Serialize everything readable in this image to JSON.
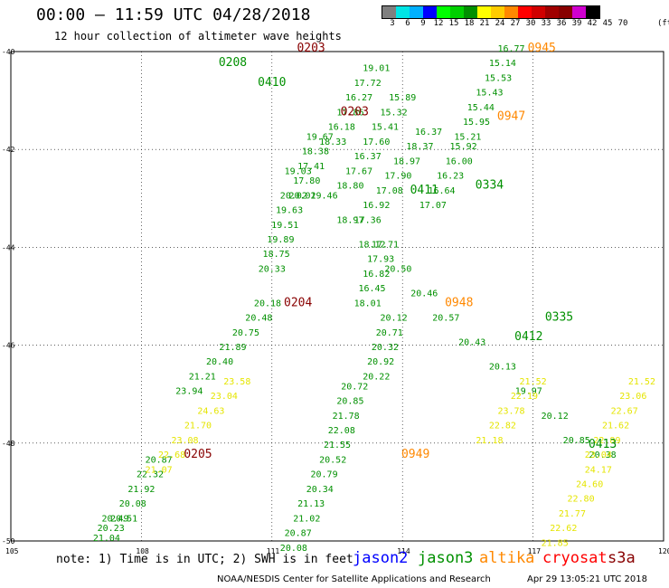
{
  "header": {
    "title": "00:00 – 11:59 UTC 04/28/2018",
    "subtitle": "12 hour collection of altimeter wave heights"
  },
  "colorscale": {
    "unit": "(ft)",
    "colors": [
      "#7f7f7f",
      "#00e5e5",
      "#00b0ff",
      "#0000ff",
      "#00ff00",
      "#00d000",
      "#009000",
      "#ffff00",
      "#ffcc00",
      "#ff8800",
      "#ff0000",
      "#d00000",
      "#a00000",
      "#880000",
      "#d000d0",
      "#000000"
    ],
    "ticks": [
      "3",
      "6",
      "9",
      "12",
      "15",
      "18",
      "21",
      "24",
      "27",
      "30",
      "33",
      "36",
      "39",
      "42",
      "45",
      "70"
    ]
  },
  "chart_data": {
    "type": "scatter",
    "xlim": [
      105,
      120
    ],
    "ylim": [
      -50,
      -40
    ],
    "x_ticks": [
      "105",
      "108",
      "111",
      "114",
      "117",
      "120"
    ],
    "y_ticks": [
      "-40",
      "-42",
      "-44",
      "-46",
      "-48",
      "-50"
    ],
    "tracks": [
      {
        "series": "jason3",
        "color": "#009000",
        "x": [
          118.6,
          118.0,
          117.5,
          116.9,
          116.3,
          115.6,
          115.0,
          114.5,
          113.9,
          113.3,
          112.8,
          112.2,
          111.6
        ],
        "y": [
          -48.3,
          -48.0,
          -47.5,
          -47.0,
          -46.5,
          -46.0,
          -45.5,
          -45.0,
          -44.5,
          -44.0,
          -43.5,
          -43.0,
          -42.5
        ],
        "values": [
          20.38,
          20.85,
          20.12,
          19.97,
          20.13,
          20.43,
          20.57,
          20.46,
          20.5,
          18.12,
          18.97,
          19.46,
          19.03
        ]
      },
      {
        "series": "jason3",
        "color": "#009000",
        "x": [
          110.9,
          110.7,
          110.4,
          110.1,
          109.8,
          109.4,
          109.1
        ],
        "y": [
          -45.2,
          -45.5,
          -45.8,
          -46.1,
          -46.4,
          -46.7,
          -47.0
        ],
        "values": [
          20.18,
          20.48,
          20.75,
          21.89,
          20.4,
          21.21,
          23.94
        ]
      },
      {
        "series": "jason3",
        "color": "#009000",
        "x": [
          111.5,
          111.4,
          111.3,
          111.2,
          111.1,
          111.0
        ],
        "y": [
          -43.0,
          -43.3,
          -43.6,
          -43.9,
          -44.2,
          -44.5
        ],
        "values": [
          20.02,
          19.63,
          19.51,
          19.89,
          18.75,
          20.33
        ]
      },
      {
        "series": "jason3",
        "color": "#009000",
        "x": [
          112.1,
          112.0,
          111.9,
          111.8,
          111.7
        ],
        "y": [
          -41.8,
          -42.1,
          -42.4,
          -42.7,
          -43.0
        ],
        "values": [
          19.67,
          18.38,
          17.41,
          17.8,
          20.02
        ]
      },
      {
        "series": "jason3",
        "color": "#009000",
        "x": [
          116.5,
          116.3,
          116.2,
          116.0,
          115.8,
          115.7,
          115.5
        ],
        "y": [
          -40.0,
          -40.3,
          -40.6,
          -40.9,
          -41.2,
          -41.5,
          -41.8
        ],
        "values": [
          16.77,
          15.14,
          15.53,
          15.43,
          15.44,
          15.95,
          15.21
        ]
      },
      {
        "series": "jason3",
        "color": "#009000",
        "x": [
          115.4,
          115.3,
          115.1,
          114.9,
          114.7
        ],
        "y": [
          -42.0,
          -42.3,
          -42.6,
          -42.9,
          -43.2
        ],
        "values": [
          15.92,
          16.0,
          16.23,
          16.64,
          17.07
        ]
      },
      {
        "series": "jason3",
        "color": "#009000",
        "x": [
          114.6,
          114.4,
          114.1,
          113.9,
          113.7,
          113.4,
          113.2
        ],
        "y": [
          -41.7,
          -42.0,
          -42.3,
          -42.6,
          -42.9,
          -43.2,
          -43.5
        ],
        "values": [
          16.37,
          18.37,
          18.97,
          17.9,
          17.08,
          16.92,
          17.36
        ]
      },
      {
        "series": "jason3",
        "color": "#009000",
        "x": [
          114.0,
          113.8,
          113.6,
          113.4,
          113.2,
          113.0,
          112.8
        ],
        "y": [
          -41.0,
          -41.3,
          -41.6,
          -41.9,
          -42.2,
          -42.5,
          -42.8
        ],
        "values": [
          15.89,
          15.32,
          15.41,
          17.6,
          16.37,
          17.67,
          18.8
        ]
      },
      {
        "series": "jason3",
        "color": "#009000",
        "x": [
          113.4,
          113.2,
          113.0,
          112.8,
          112.6,
          112.4
        ],
        "y": [
          -40.4,
          -40.7,
          -41.0,
          -41.3,
          -41.6,
          -41.9
        ],
        "values": [
          19.01,
          17.72,
          16.27,
          17.86,
          16.18,
          18.33
        ]
      },
      {
        "series": "jason3",
        "color": "#009000",
        "x": [
          113.6,
          113.5,
          113.4,
          113.3,
          113.2
        ],
        "y": [
          -44.0,
          -44.3,
          -44.6,
          -44.9,
          -45.2
        ],
        "values": [
          17.71,
          17.93,
          16.82,
          16.45,
          18.01
        ]
      },
      {
        "series": "jason3",
        "color": "#009000",
        "x": [
          113.8,
          113.7,
          113.6,
          113.5,
          113.4
        ],
        "y": [
          -45.5,
          -45.8,
          -46.1,
          -46.4,
          -46.7
        ],
        "values": [
          20.12,
          20.71,
          20.32,
          20.92,
          20.22
        ]
      },
      {
        "series": "jason3",
        "color": "#009000",
        "x": [
          112.9,
          112.8,
          112.7,
          112.6,
          112.5,
          112.4
        ],
        "y": [
          -46.9,
          -47.2,
          -47.5,
          -47.8,
          -48.1,
          -48.4
        ],
        "values": [
          20.72,
          20.85,
          21.78,
          22.08,
          21.55,
          20.52
        ]
      },
      {
        "series": "jason3",
        "color": "#009000",
        "x": [
          112.2,
          112.1,
          111.9,
          111.8,
          111.6,
          111.5
        ],
        "y": [
          -48.7,
          -49.0,
          -49.3,
          -49.6,
          -49.9,
          -50.2
        ],
        "values": [
          20.79,
          20.34,
          21.13,
          21.02,
          20.87,
          20.08
        ]
      },
      {
        "series": "jason3",
        "color": "#009000",
        "x": [
          108.4,
          108.2,
          108.0,
          107.8,
          107.6
        ],
        "y": [
          -48.4,
          -48.7,
          -49.0,
          -49.3,
          -49.6
        ],
        "values": [
          20.87,
          22.32,
          21.92,
          20.08,
          20.51
        ]
      },
      {
        "series": "jason3",
        "color": "#009000",
        "x": [
          107.4,
          107.3,
          107.2
        ],
        "y": [
          -49.6,
          -49.8,
          -50.0
        ],
        "values": [
          20.49,
          20.23,
          21.04
        ]
      },
      {
        "series": "altika",
        "color": "#e5e500",
        "x": [
          110.2,
          109.9,
          109.6,
          109.3,
          109.0,
          108.7,
          108.4
        ],
        "y": [
          -46.8,
          -47.1,
          -47.4,
          -47.7,
          -48.0,
          -48.3,
          -48.6
        ],
        "values": [
          23.58,
          23.04,
          24.63,
          21.7,
          23.08,
          22.68,
          21.07
        ]
      },
      {
        "series": "altika",
        "color": "#e5e500",
        "x": [
          117.0,
          116.8,
          116.5,
          116.3,
          116.0
        ],
        "y": [
          -46.8,
          -47.1,
          -47.4,
          -47.7,
          -48.0
        ],
        "values": [
          21.52,
          22.19,
          23.78,
          22.82,
          21.18
        ]
      },
      {
        "series": "altika",
        "color": "#e5e500",
        "x": [
          118.5,
          118.3,
          118.1,
          117.9,
          117.7,
          117.5
        ],
        "y": [
          -48.6,
          -48.9,
          -49.2,
          -49.5,
          -49.8,
          -50.1
        ],
        "values": [
          24.17,
          24.6,
          22.8,
          21.77,
          22.62,
          21.85
        ]
      },
      {
        "series": "altika",
        "color": "#e5e500",
        "x": [
          119.5,
          119.3,
          119.1,
          118.9,
          118.7,
          118.5
        ],
        "y": [
          -46.8,
          -47.1,
          -47.4,
          -47.7,
          -48.0,
          -48.3
        ],
        "values": [
          21.52,
          23.06,
          22.67,
          21.62,
          22.89,
          23.04
        ]
      }
    ],
    "labels": [
      {
        "text": "0203",
        "x": 111.9,
        "y": -40.0,
        "color": "#880000"
      },
      {
        "text": "0203",
        "x": 112.9,
        "y": -41.3,
        "color": "#880000"
      },
      {
        "text": "0204",
        "x": 111.6,
        "y": -45.2,
        "color": "#880000"
      },
      {
        "text": "0205",
        "x": 109.3,
        "y": -48.3,
        "color": "#880000"
      },
      {
        "text": "0945",
        "x": 117.2,
        "y": -40.0,
        "color": "#ff8800"
      },
      {
        "text": "0947",
        "x": 116.5,
        "y": -41.4,
        "color": "#ff8800"
      },
      {
        "text": "0948",
        "x": 115.3,
        "y": -45.2,
        "color": "#ff8800"
      },
      {
        "text": "0949",
        "x": 114.3,
        "y": -48.3,
        "color": "#ff8800"
      },
      {
        "text": "0208",
        "x": 110.1,
        "y": -40.3,
        "color": "#009000"
      },
      {
        "text": "0410",
        "x": 111.0,
        "y": -40.7,
        "color": "#009000"
      },
      {
        "text": "0334",
        "x": 116.0,
        "y": -42.8,
        "color": "#009000"
      },
      {
        "text": "0411",
        "x": 114.5,
        "y": -42.9,
        "color": "#009000"
      },
      {
        "text": "0412",
        "x": 116.9,
        "y": -45.9,
        "color": "#009000"
      },
      {
        "text": "0335",
        "x": 117.6,
        "y": -45.5,
        "color": "#009000"
      },
      {
        "text": "0413",
        "x": 118.6,
        "y": -48.1,
        "color": "#009000"
      }
    ]
  },
  "footer": {
    "note": "note: 1) Time is in UTC; 2) SWH is in feet",
    "satellites": [
      {
        "name": "jason2",
        "color": "#0000ff"
      },
      {
        "name": "jason3",
        "color": "#009000"
      },
      {
        "name": "altika",
        "color": "#ff8800"
      },
      {
        "name": "cryosat",
        "color": "#ff0000"
      },
      {
        "name": "s3a",
        "color": "#880000"
      }
    ],
    "credit": "NOAA/NESDIS Center for Satellite Applications and Research",
    "timestamp": "Apr 29 13:05:21 UTC 2018"
  }
}
